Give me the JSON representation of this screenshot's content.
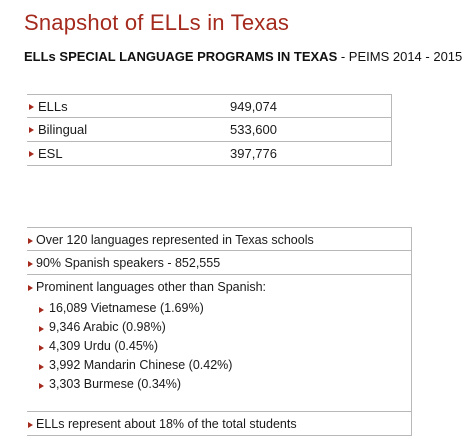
{
  "title": "Snapshot of ELLs in Texas",
  "subtitle": {
    "bold": "ELLs SPECIAL LANGUAGE PROGRAMS IN TEXAS",
    "rest": " - PEIMS 2014 - 2015"
  },
  "stats": [
    {
      "label": "ELLs",
      "value": "949,074"
    },
    {
      "label": "Bilingual",
      "value": "533,600"
    },
    {
      "label": "ESL",
      "value": "397,776"
    }
  ],
  "facts": {
    "languages": "Over 120 languages represented in Texas schools",
    "spanish": "90% Spanish speakers - 852,555",
    "prominent": {
      "heading": "Prominent languages other than Spanish:",
      "items": [
        "16,089 Vietnamese (1.69%)",
        "9,346 Arabic (0.98%)",
        "4,309 Urdu (0.45%)",
        "3,992 Mandarin Chinese (0.42%)",
        "3,303 Burmese (0.34%)"
      ]
    },
    "total": "ELLs represent about 18% of the total students"
  },
  "colors": {
    "accent": "#a52a1e",
    "rule": "#b8b8b8"
  }
}
